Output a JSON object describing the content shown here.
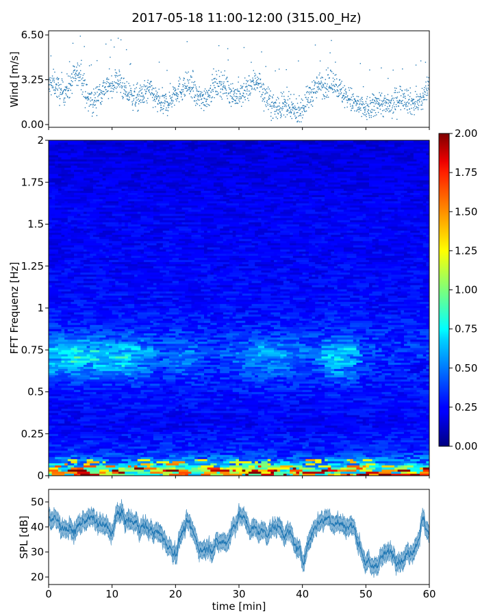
{
  "title": "2017-05-18 11:00-12:00 (315.00_Hz)",
  "chart_data": [
    {
      "type": "scatter",
      "ylabel": "Wind [m/s]",
      "xlim": [
        0,
        60
      ],
      "ylim": [
        -0.2,
        6.8
      ],
      "yticks": [
        0.0,
        3.25,
        6.5
      ],
      "ytick_labels": [
        "0.00",
        "3.25",
        "6.50"
      ],
      "color": "#1f77b4",
      "x_step": 1,
      "y": [
        2.8,
        3.0,
        2.2,
        2.6,
        3.4,
        3.8,
        2.0,
        1.6,
        2.3,
        2.7,
        2.9,
        3.3,
        2.4,
        2.1,
        1.9,
        2.2,
        2.5,
        1.8,
        1.4,
        1.7,
        2.4,
        2.6,
        2.9,
        2.2,
        1.8,
        2.1,
        2.7,
        3.0,
        2.8,
        2.2,
        2.0,
        2.4,
        2.9,
        3.3,
        2.1,
        1.5,
        1.2,
        1.4,
        1.1,
        0.9,
        1.2,
        2.0,
        2.6,
        3.0,
        2.8,
        3.2,
        2.4,
        2.0,
        1.6,
        1.3,
        1.1,
        1.2,
        1.7,
        1.4,
        1.3,
        1.9,
        2.1,
        1.6,
        1.5,
        1.9,
        3.0
      ]
    },
    {
      "type": "heatmap",
      "ylabel": "FFT Frequenz [Hz]",
      "xlim": [
        0,
        60
      ],
      "ylim": [
        0,
        2
      ],
      "yticks": [
        0,
        0.25,
        0.5,
        0.75,
        1,
        1.25,
        1.5,
        1.75,
        2
      ],
      "ytick_labels": [
        "0",
        "0.25",
        "0.5",
        "0.75",
        "1",
        "1.25",
        "1.5",
        "1.75",
        "2"
      ],
      "colormap": "jet",
      "colorbar": {
        "range": [
          0.0,
          2.0
        ],
        "ticks": [
          0.0,
          0.25,
          0.5,
          0.75,
          1.0,
          1.25,
          1.5,
          1.75,
          2.0
        ],
        "tick_labels": [
          "0.00",
          "0.25",
          "0.50",
          "0.75",
          "1.00",
          "1.25",
          "1.50",
          "1.75",
          "2.00"
        ]
      },
      "freq_profile": {
        "freqs": [
          0.0,
          0.03,
          0.08,
          0.15,
          0.3,
          0.5,
          0.65,
          0.75,
          0.85,
          1.0,
          1.3,
          1.6,
          1.8,
          2.0
        ],
        "level": [
          1.6,
          1.0,
          0.5,
          0.3,
          0.22,
          0.26,
          0.32,
          0.36,
          0.3,
          0.25,
          0.22,
          0.21,
          0.18,
          0.15
        ]
      },
      "band_activity": {
        "x": [
          0,
          5,
          8,
          10,
          14,
          18,
          22,
          26,
          30,
          34,
          38,
          42,
          44,
          47,
          50,
          55,
          60
        ],
        "values": [
          0.75,
          0.85,
          0.8,
          0.8,
          0.8,
          0.5,
          0.6,
          0.4,
          0.55,
          0.7,
          0.6,
          0.5,
          0.75,
          0.8,
          0.45,
          0.4,
          0.4
        ]
      }
    },
    {
      "type": "line",
      "ylabel": "SPL [dB]",
      "xlabel": "time [min]",
      "xlim": [
        0,
        60
      ],
      "ylim": [
        17,
        55
      ],
      "xticks": [
        0,
        10,
        20,
        30,
        40,
        50,
        60
      ],
      "xtick_labels": [
        "0",
        "10",
        "20",
        "30",
        "40",
        "50",
        "60"
      ],
      "yticks": [
        20,
        30,
        40,
        50
      ],
      "ytick_labels": [
        "20",
        "30",
        "40",
        "50"
      ],
      "color": "#1f77b4",
      "x": [
        0,
        2,
        4,
        6,
        8,
        10,
        11,
        12,
        14,
        16,
        18,
        19,
        20,
        21,
        22,
        24,
        26,
        28,
        30,
        32,
        34,
        36,
        38,
        40,
        42,
        44,
        46,
        48,
        50,
        51,
        52,
        54,
        56,
        58,
        59,
        60
      ],
      "values": [
        44,
        41,
        38,
        44,
        41,
        38,
        46,
        43,
        41,
        39,
        36,
        32,
        30,
        38,
        41,
        31,
        33,
        34,
        45,
        39,
        38,
        40,
        37,
        27,
        41,
        44,
        41,
        40,
        26,
        23,
        27,
        30,
        27,
        34,
        43,
        37
      ]
    }
  ]
}
